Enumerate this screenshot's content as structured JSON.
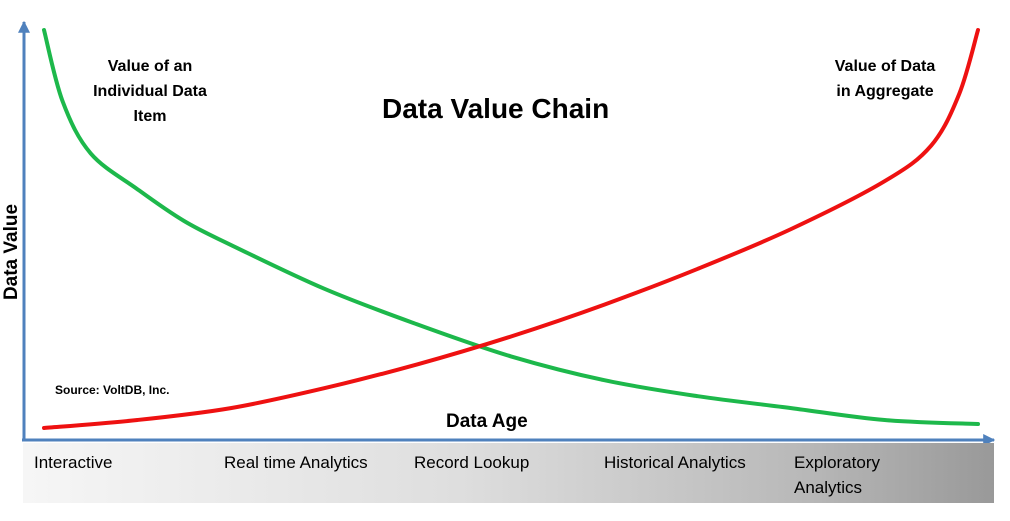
{
  "title": "Data Value Chain",
  "chart_data": {
    "type": "line",
    "title": "Data Value Chain",
    "xlabel": "Data Age",
    "ylabel": "Data Value",
    "x_categories": [
      "Interactive",
      "Real time Analytics",
      "Record Lookup",
      "Historical Analytics",
      "Exploratory\nAnalytics"
    ],
    "grid": false,
    "legend": "none",
    "series": [
      {
        "name": "Value of an\nIndividual Data\nItem",
        "color": "#1db84b",
        "trend": "decreasing",
        "x": [
          0,
          0.02,
          0.05,
          0.1,
          0.15,
          0.2,
          0.3,
          0.4,
          0.5,
          0.6,
          0.7,
          0.8,
          0.9,
          1.0
        ],
        "y": [
          1.0,
          0.82,
          0.69,
          0.6,
          0.52,
          0.46,
          0.35,
          0.26,
          0.18,
          0.12,
          0.08,
          0.05,
          0.02,
          0.01
        ]
      },
      {
        "name": "Value of Data\nin Aggregate",
        "color": "#ee1111",
        "trend": "increasing",
        "x": [
          0,
          0.1,
          0.2,
          0.3,
          0.4,
          0.5,
          0.6,
          0.7,
          0.8,
          0.9,
          0.95,
          0.98,
          1.0
        ],
        "y": [
          0.0,
          0.02,
          0.05,
          0.1,
          0.16,
          0.23,
          0.31,
          0.4,
          0.5,
          0.62,
          0.71,
          0.84,
          1.0
        ]
      }
    ],
    "source": "Source: VoltDB, Inc."
  },
  "colors": {
    "axis": "#4f81bd",
    "green": "#1db84b",
    "red": "#ee1111"
  }
}
